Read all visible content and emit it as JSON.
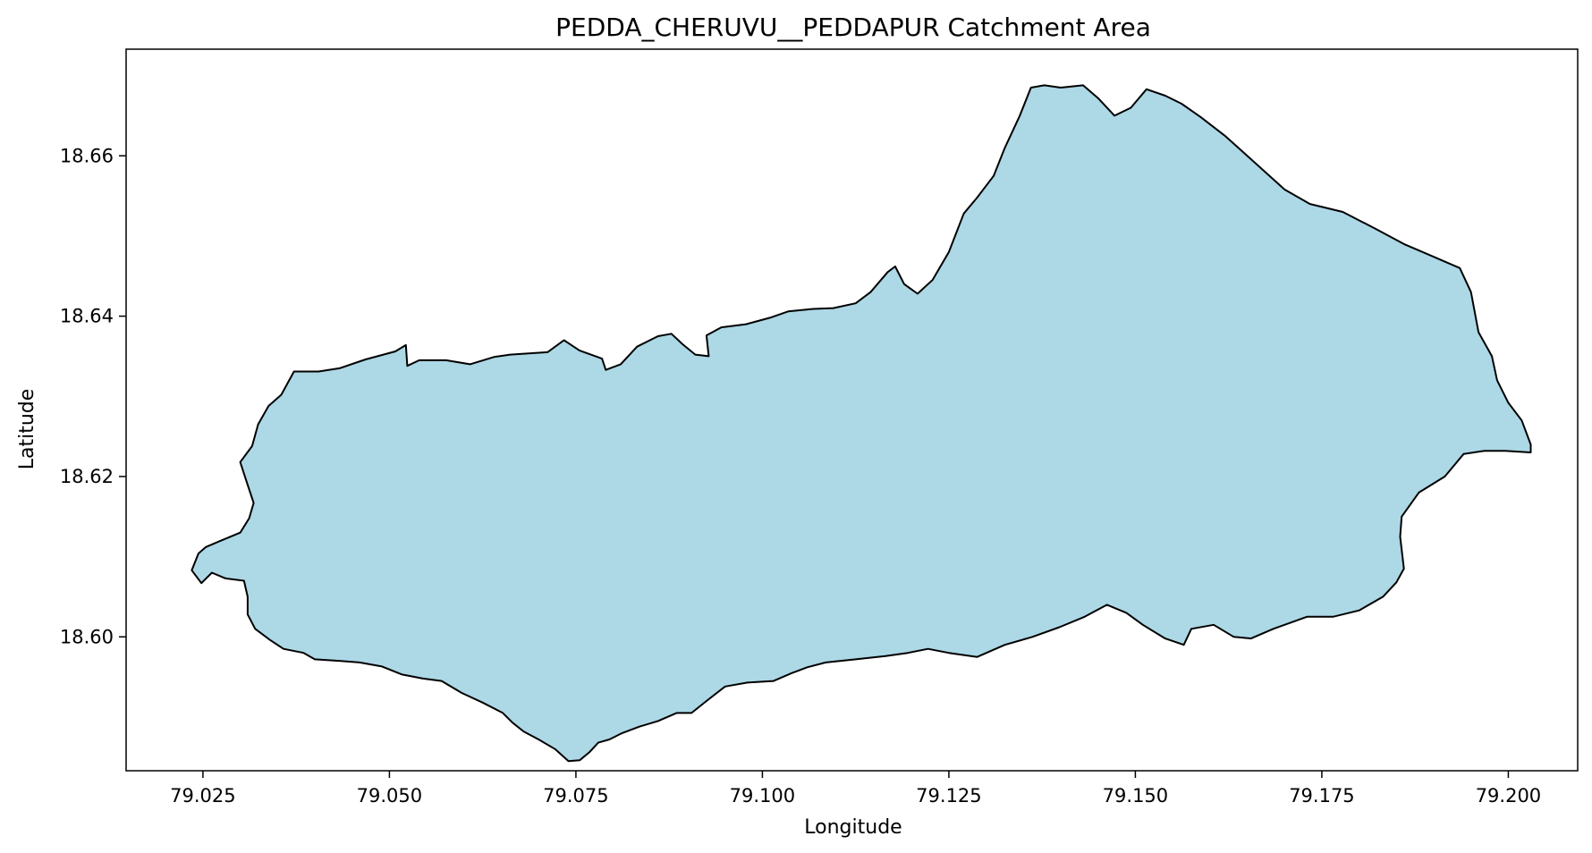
{
  "chart_data": {
    "type": "map",
    "title": "PEDDA_CHERUVU__PEDDAPUR Catchment Area",
    "xlabel": "Longitude",
    "ylabel": "Latitude",
    "xlim": [
      79.0147,
      79.2093
    ],
    "ylim": [
      18.5833,
      18.6733
    ],
    "xticks": [
      79.025,
      79.05,
      79.075,
      79.1,
      79.125,
      79.15,
      79.175,
      79.2
    ],
    "xtick_labels": [
      "79.025",
      "79.050",
      "79.075",
      "79.100",
      "79.125",
      "79.150",
      "79.175",
      "79.200"
    ],
    "yticks": [
      18.6,
      18.62,
      18.64,
      18.66
    ],
    "ytick_labels": [
      "18.60",
      "18.62",
      "18.64",
      "18.66"
    ],
    "grid": false,
    "fill_color": "#add8e6",
    "edge_color": "#000000",
    "boundary": [
      [
        79.0235,
        18.6083
      ],
      [
        79.0244,
        18.6104
      ],
      [
        79.0254,
        18.6112
      ],
      [
        79.0274,
        18.612
      ],
      [
        79.03,
        18.613
      ],
      [
        79.0312,
        18.6148
      ],
      [
        79.0318,
        18.6167
      ],
      [
        79.0308,
        18.6195
      ],
      [
        79.03,
        18.6218
      ],
      [
        79.0316,
        18.6238
      ],
      [
        79.0324,
        18.6265
      ],
      [
        79.0338,
        18.6288
      ],
      [
        79.0355,
        18.6302
      ],
      [
        79.0372,
        18.6331
      ],
      [
        79.0405,
        18.6331
      ],
      [
        79.0433,
        18.6335
      ],
      [
        79.0468,
        18.6346
      ],
      [
        79.0508,
        18.6356
      ],
      [
        79.0522,
        18.6364
      ],
      [
        79.0524,
        18.6338
      ],
      [
        79.054,
        18.6345
      ],
      [
        79.0576,
        18.6345
      ],
      [
        79.0608,
        18.634
      ],
      [
        79.064,
        18.6349
      ],
      [
        79.0662,
        18.6352
      ],
      [
        79.0712,
        18.6355
      ],
      [
        79.0734,
        18.637
      ],
      [
        79.0755,
        18.6357
      ],
      [
        79.0785,
        18.6347
      ],
      [
        79.079,
        18.6333
      ],
      [
        79.081,
        18.634
      ],
      [
        79.0832,
        18.6362
      ],
      [
        79.086,
        18.6375
      ],
      [
        79.0878,
        18.6378
      ],
      [
        79.0893,
        18.6365
      ],
      [
        79.091,
        18.6352
      ],
      [
        79.0928,
        18.635
      ],
      [
        79.0925,
        18.6376
      ],
      [
        79.0945,
        18.6386
      ],
      [
        79.0978,
        18.639
      ],
      [
        79.101,
        18.6398
      ],
      [
        79.1035,
        18.6406
      ],
      [
        79.1068,
        18.6409
      ],
      [
        79.1095,
        18.641
      ],
      [
        79.1125,
        18.6416
      ],
      [
        79.1145,
        18.643
      ],
      [
        79.1168,
        18.6455
      ],
      [
        79.1178,
        18.6462
      ],
      [
        79.119,
        18.644
      ],
      [
        79.1208,
        18.6428
      ],
      [
        79.1228,
        18.6445
      ],
      [
        79.125,
        18.648
      ],
      [
        79.127,
        18.6528
      ],
      [
        79.1288,
        18.6548
      ],
      [
        79.131,
        18.6575
      ],
      [
        79.1325,
        18.661
      ],
      [
        79.1345,
        18.665
      ],
      [
        79.136,
        18.6685
      ],
      [
        79.1378,
        18.6688
      ],
      [
        79.14,
        18.6685
      ],
      [
        79.143,
        18.6688
      ],
      [
        79.145,
        18.6672
      ],
      [
        79.1472,
        18.665
      ],
      [
        79.1494,
        18.666
      ],
      [
        79.1515,
        18.6683
      ],
      [
        79.154,
        18.6675
      ],
      [
        79.1562,
        18.6665
      ],
      [
        79.1588,
        18.6648
      ],
      [
        79.162,
        18.6625
      ],
      [
        79.1662,
        18.659
      ],
      [
        79.17,
        18.6558
      ],
      [
        79.1734,
        18.654
      ],
      [
        79.1778,
        18.653
      ],
      [
        79.182,
        18.651
      ],
      [
        79.186,
        18.649
      ],
      [
        79.1895,
        18.6476
      ],
      [
        79.1935,
        18.646
      ],
      [
        79.195,
        18.643
      ],
      [
        79.196,
        18.638
      ],
      [
        79.1978,
        18.635
      ],
      [
        79.1985,
        18.632
      ],
      [
        79.2,
        18.6292
      ],
      [
        79.2018,
        18.627
      ],
      [
        79.203,
        18.624
      ],
      [
        79.203,
        18.623
      ],
      [
        79.1996,
        18.6232
      ],
      [
        79.1968,
        18.6232
      ],
      [
        79.194,
        18.6228
      ],
      [
        79.1915,
        18.62
      ],
      [
        79.188,
        18.618
      ],
      [
        79.1857,
        18.615
      ],
      [
        79.1855,
        18.6125
      ],
      [
        79.186,
        18.6085
      ],
      [
        79.185,
        18.6068
      ],
      [
        79.1832,
        18.605
      ],
      [
        79.18,
        18.6033
      ],
      [
        79.1765,
        18.6025
      ],
      [
        79.173,
        18.6025
      ],
      [
        79.1685,
        18.601
      ],
      [
        79.1655,
        18.5998
      ],
      [
        79.1632,
        18.6
      ],
      [
        79.1605,
        18.6015
      ],
      [
        79.1575,
        18.601
      ],
      [
        79.1565,
        18.599
      ],
      [
        79.154,
        18.5998
      ],
      [
        79.151,
        18.6015
      ],
      [
        79.1488,
        18.603
      ],
      [
        79.1462,
        18.604
      ],
      [
        79.1432,
        18.6025
      ],
      [
        79.1398,
        18.6012
      ],
      [
        79.1362,
        18.6
      ],
      [
        79.1325,
        18.599
      ],
      [
        79.1288,
        18.5975
      ],
      [
        79.125,
        18.598
      ],
      [
        79.1222,
        18.5985
      ],
      [
        79.1195,
        18.598
      ],
      [
        79.1165,
        18.5976
      ],
      [
        79.1125,
        18.5972
      ],
      [
        79.1085,
        18.5968
      ],
      [
        79.106,
        18.5962
      ],
      [
        79.104,
        18.5955
      ],
      [
        79.1015,
        18.5945
      ],
      [
        79.098,
        18.5943
      ],
      [
        79.095,
        18.5938
      ],
      [
        79.0925,
        18.592
      ],
      [
        79.0905,
        18.5905
      ],
      [
        79.0885,
        18.5905
      ],
      [
        79.086,
        18.5895
      ],
      [
        79.0835,
        18.5888
      ],
      [
        79.0812,
        18.588
      ],
      [
        79.0795,
        18.5872
      ],
      [
        79.078,
        18.5868
      ],
      [
        79.0768,
        18.5856
      ],
      [
        79.0755,
        18.5846
      ],
      [
        79.074,
        18.5845
      ],
      [
        79.0722,
        18.586
      ],
      [
        79.07,
        18.5872
      ],
      [
        79.068,
        18.5882
      ],
      [
        79.0665,
        18.5893
      ],
      [
        79.0652,
        18.5905
      ],
      [
        79.0625,
        18.5918
      ],
      [
        79.0597,
        18.593
      ],
      [
        79.057,
        18.5945
      ],
      [
        79.0545,
        18.5948
      ],
      [
        79.0517,
        18.5953
      ],
      [
        79.049,
        18.5963
      ],
      [
        79.046,
        18.5968
      ],
      [
        79.0435,
        18.597
      ],
      [
        79.04,
        18.5972
      ],
      [
        79.0385,
        18.598
      ],
      [
        79.0358,
        18.5985
      ],
      [
        79.034,
        18.5996
      ],
      [
        79.032,
        18.601
      ],
      [
        79.031,
        18.6028
      ],
      [
        79.031,
        18.605
      ],
      [
        79.0305,
        18.607
      ],
      [
        79.028,
        18.6073
      ],
      [
        79.0262,
        18.608
      ],
      [
        79.0248,
        18.6067
      ],
      [
        79.0235,
        18.6083
      ]
    ]
  }
}
